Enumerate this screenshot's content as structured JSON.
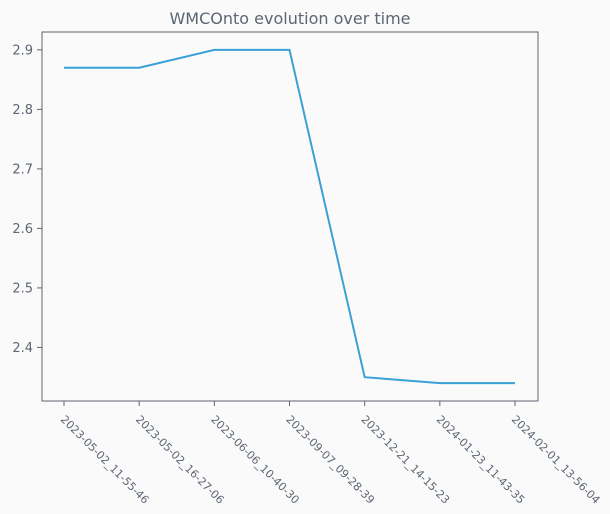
{
  "chart_data": {
    "type": "line",
    "title": "WMCOnto evolution over time",
    "xlabel": "",
    "ylabel": "",
    "categories": [
      "2023-05-02_11-55-46",
      "2023-05-02_16-27-06",
      "2023-06-06_10-40-30",
      "2023-09-07_09-28-39",
      "2023-12-21_14-15-23",
      "2024-01-23_11-43-35",
      "2024-02-01_13-56-04"
    ],
    "values": [
      2.87,
      2.87,
      2.9,
      2.9,
      2.35,
      2.34,
      2.34
    ],
    "yticks": [
      "2.4",
      "2.5",
      "2.6",
      "2.7",
      "2.8",
      "2.9"
    ],
    "ylim": [
      2.31,
      2.93
    ],
    "grid": false,
    "line_color": "#3aa1d6",
    "axis_color": "#5d6673"
  }
}
